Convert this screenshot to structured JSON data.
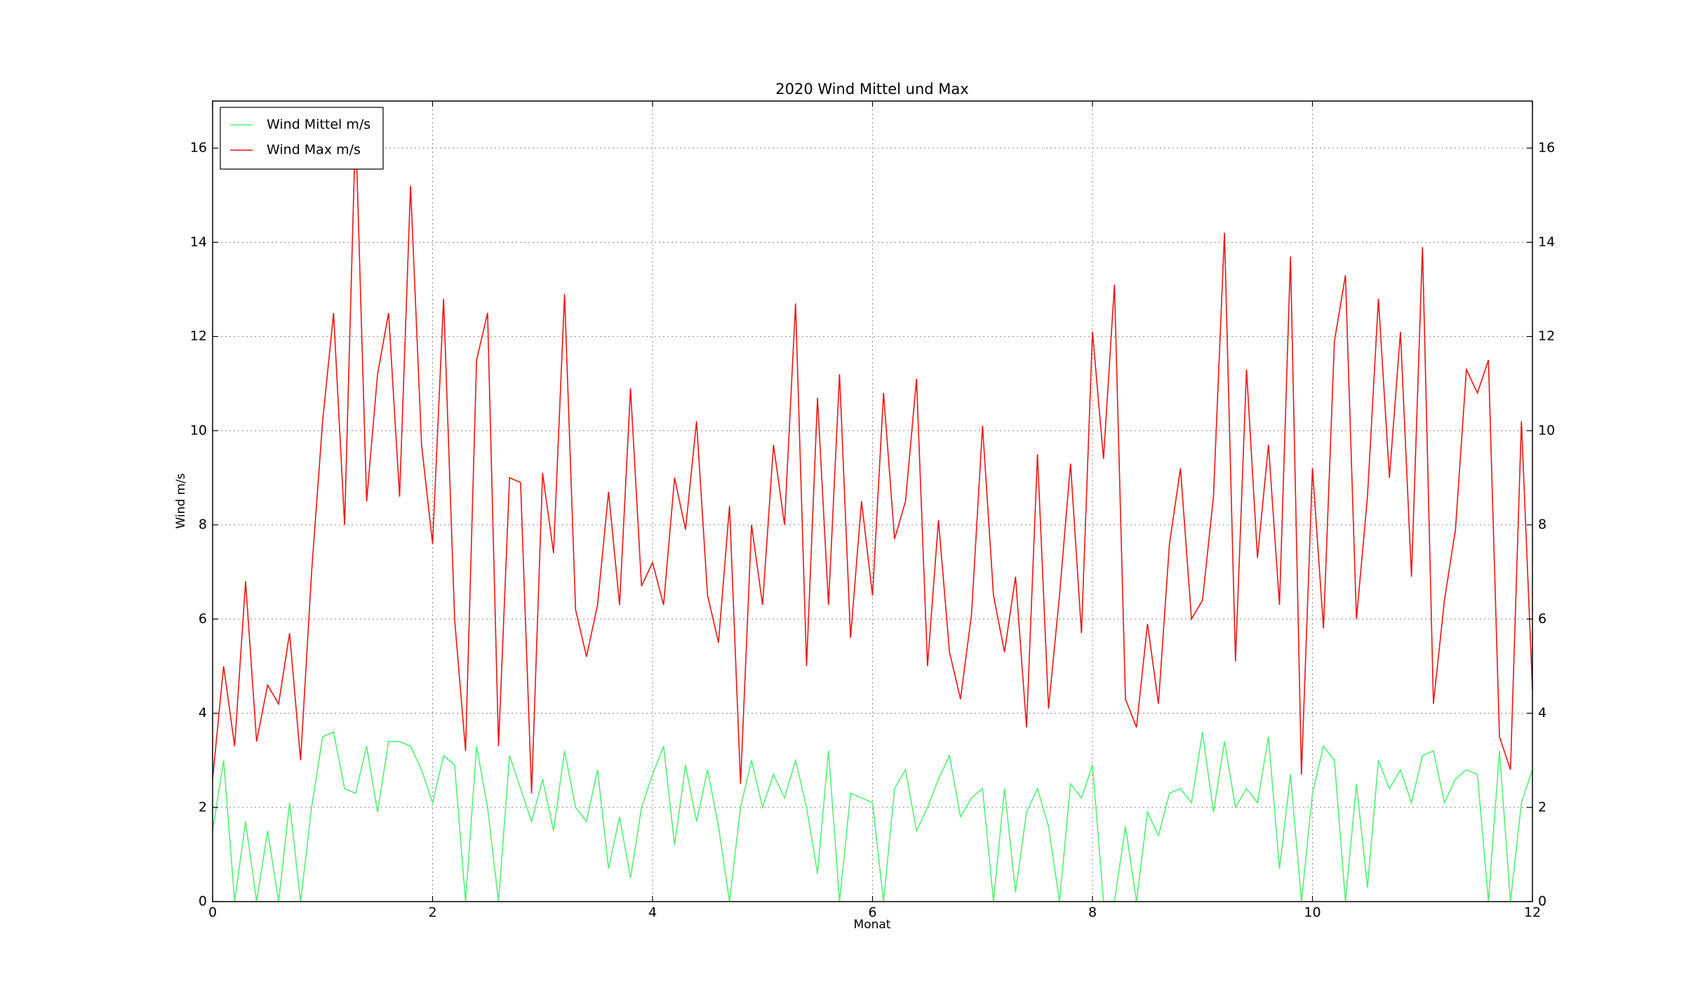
{
  "chart_data": {
    "type": "line",
    "title": "2020 Wind Mittel und Max",
    "x_label": "Monat",
    "y_label": "Wind m/s",
    "x": [
      0,
      0.1,
      0.2,
      0.3,
      0.4,
      0.5,
      0.6,
      0.7,
      0.8,
      0.9,
      1,
      1.1,
      1.2,
      1.3,
      1.4,
      1.5,
      1.6,
      1.7,
      1.8,
      1.9,
      2,
      2.1,
      2.2,
      2.3,
      2.4,
      2.5,
      2.6,
      2.7,
      2.8,
      2.9,
      3,
      3.1,
      3.2,
      3.3,
      3.4,
      3.5,
      3.6,
      3.7,
      3.8,
      3.9,
      4,
      4.1,
      4.2,
      4.3,
      4.4,
      4.5,
      4.6,
      4.7,
      4.8,
      4.9,
      5,
      5.1,
      5.2,
      5.3,
      5.4,
      5.5,
      5.6,
      5.7,
      5.8,
      5.9,
      6,
      6.1,
      6.2,
      6.3,
      6.4,
      6.5,
      6.6,
      6.7,
      6.8,
      6.9,
      7,
      7.1,
      7.2,
      7.3,
      7.4,
      7.5,
      7.6,
      7.7,
      7.8,
      7.9,
      8,
      8.1,
      8.2,
      8.3,
      8.4,
      8.5,
      8.6,
      8.7,
      8.8,
      8.9,
      9,
      9.1,
      9.2,
      9.3,
      9.4,
      9.5,
      9.6,
      9.7,
      9.8,
      9.9,
      10,
      10.1,
      10.2,
      10.3,
      10.4,
      10.5,
      10.6,
      10.7,
      10.8,
      10.9,
      11,
      11.1,
      11.2,
      11.3,
      11.4,
      11.5,
      11.6,
      11.7,
      11.8,
      11.9,
      12
    ],
    "series": [
      {
        "name": "Wind Mittel m/s",
        "color": "#55ee77",
        "values": [
          1.5,
          3.0,
          0.0,
          1.7,
          0.0,
          1.5,
          0.0,
          2.1,
          0.0,
          2.0,
          3.5,
          3.6,
          2.4,
          2.3,
          3.3,
          1.9,
          3.4,
          3.4,
          3.3,
          2.8,
          2.1,
          3.1,
          2.9,
          0.0,
          3.3,
          2.0,
          0.0,
          3.1,
          2.4,
          1.7,
          2.6,
          1.5,
          3.2,
          2.0,
          1.7,
          2.8,
          0.7,
          1.8,
          0.5,
          2.0,
          2.7,
          3.3,
          1.2,
          2.9,
          1.7,
          2.8,
          1.6,
          0.0,
          2.0,
          3.0,
          2.0,
          2.7,
          2.2,
          3.0,
          2.0,
          0.6,
          3.2,
          0.0,
          2.3,
          2.2,
          2.1,
          0.0,
          2.4,
          2.8,
          1.5,
          2.0,
          2.6,
          3.1,
          1.8,
          2.2,
          2.4,
          0.0,
          2.4,
          0.2,
          1.9,
          2.4,
          1.6,
          0.0,
          2.5,
          2.2,
          2.9,
          0.0,
          0.0,
          1.6,
          0.0,
          1.9,
          1.4,
          2.3,
          2.4,
          2.1,
          3.6,
          1.9,
          3.4,
          2.0,
          2.4,
          2.1,
          3.5,
          0.7,
          2.7,
          0.0,
          2.3,
          3.3,
          3.0,
          0.0,
          2.5,
          0.3,
          3.0,
          2.4,
          2.8,
          2.1,
          3.1,
          3.2,
          2.1,
          2.6,
          2.8,
          2.7,
          0.0,
          3.2,
          0.0,
          2.1,
          2.8
        ]
      },
      {
        "name": "Wind Max m/s",
        "color": "#ee1111",
        "values": [
          2.6,
          5.0,
          3.3,
          6.8,
          3.4,
          4.6,
          4.2,
          5.7,
          3.0,
          7.0,
          10.2,
          12.5,
          8.0,
          16.5,
          8.5,
          11.2,
          12.5,
          8.6,
          15.2,
          9.7,
          7.6,
          12.8,
          6.0,
          3.2,
          11.5,
          12.5,
          3.3,
          9.0,
          8.9,
          2.3,
          9.1,
          7.4,
          12.9,
          6.2,
          5.2,
          6.3,
          8.7,
          6.3,
          10.9,
          6.7,
          7.2,
          6.3,
          9.0,
          7.9,
          10.2,
          6.5,
          5.5,
          8.4,
          2.5,
          8.0,
          6.3,
          9.7,
          8.0,
          12.7,
          5.0,
          10.7,
          6.3,
          11.2,
          5.6,
          8.5,
          6.5,
          10.8,
          7.7,
          8.5,
          11.1,
          5.0,
          8.1,
          5.3,
          4.3,
          6.1,
          10.1,
          6.5,
          5.3,
          6.9,
          3.7,
          9.5,
          4.1,
          6.5,
          9.3,
          5.7,
          12.1,
          9.4,
          13.1,
          4.3,
          3.7,
          5.9,
          4.2,
          7.6,
          9.2,
          6.0,
          6.4,
          8.6,
          14.2,
          5.1,
          11.3,
          7.3,
          9.7,
          6.3,
          13.7,
          2.7,
          9.2,
          5.8,
          11.9,
          13.3,
          6.0,
          8.6,
          12.8,
          9.0,
          12.1,
          6.9,
          13.9,
          4.2,
          6.4,
          7.9,
          11.3,
          10.8,
          11.5,
          3.5,
          2.8,
          10.2,
          4.5
        ]
      }
    ],
    "xlim": [
      0,
      12
    ],
    "xticks": [
      0,
      2,
      4,
      6,
      8,
      10,
      12
    ],
    "ylim": [
      0,
      17
    ],
    "yticks": [
      0,
      2,
      4,
      6,
      8,
      10,
      12,
      14,
      16
    ],
    "grid": true,
    "legend": "upper left"
  }
}
